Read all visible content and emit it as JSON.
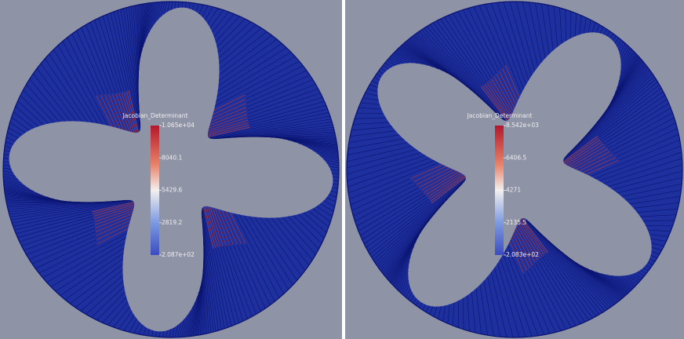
{
  "panels": [
    {
      "legend": {
        "title": "Jacobian_Determinant",
        "labels": [
          "1.065e+04",
          "8040.1",
          "5429.6",
          "2819.2",
          "2.087e+02"
        ]
      }
    },
    {
      "legend": {
        "title": "Jacobian_Determinant",
        "labels": [
          "8.542e+03",
          "6406.5",
          "4271",
          "2135.5",
          "2.083e+02"
        ]
      }
    }
  ]
}
